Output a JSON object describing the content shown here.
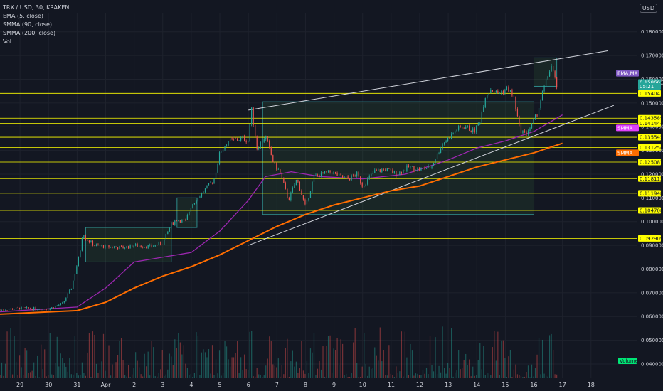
{
  "legend": {
    "symbol": "TRX / USD, 30, KRAKEN",
    "ema": "EMA (5, close)",
    "smma90": "SMMA (90, close)",
    "smma200": "SMMA (200, close)",
    "vol": "Vol"
  },
  "currency_button": "USD",
  "chart_data": {
    "type": "candlestick",
    "ylim": [
      0.034,
      0.188
    ],
    "y_ticks": [
      "0.180000",
      "0.170000",
      "0.160000",
      "0.150000",
      "0.140000",
      "0.130000",
      "0.120000",
      "0.110000",
      "0.100000",
      "0.090000",
      "0.080000",
      "0.070000",
      "0.060000",
      "0.050000",
      "0.040000"
    ],
    "y_tick_values": [
      0.18,
      0.17,
      0.16,
      0.15,
      0.14,
      0.13,
      0.12,
      0.11,
      0.1,
      0.09,
      0.08,
      0.07,
      0.06,
      0.05,
      0.04
    ],
    "x_tick_labels": [
      "29",
      "30",
      "31",
      "Apr",
      "2",
      "3",
      "4",
      "5",
      "6",
      "7",
      "8",
      "9",
      "10",
      "11",
      "12",
      "13",
      "14",
      "15",
      "16",
      "17",
      "18"
    ],
    "x_tick_days": [
      -3,
      -2,
      -1,
      0,
      1,
      2,
      3,
      4,
      5,
      6,
      7,
      8,
      9,
      10,
      11,
      12,
      13,
      14,
      15,
      16,
      17
    ],
    "x_range_days": [
      -3.7,
      18.6
    ],
    "price_series": {
      "name": "TRX / USD",
      "days": [
        -3.7,
        -3.0,
        -2.0,
        -1.5,
        -1.2,
        -0.9,
        -0.8,
        -0.7,
        -0.4,
        0.0,
        0.6,
        1.0,
        1.6,
        2.0,
        2.3,
        2.5,
        2.8,
        3.0,
        3.3,
        3.6,
        3.8,
        4.0,
        4.3,
        4.6,
        4.8,
        5.0,
        5.1,
        5.3,
        5.6,
        5.9,
        6.1,
        6.4,
        6.7,
        7.0,
        7.3,
        7.6,
        7.9,
        8.2,
        8.5,
        8.8,
        9.0,
        9.4,
        9.8,
        10.2,
        10.6,
        11.0,
        11.4,
        11.8,
        12.0,
        12.3,
        12.6,
        12.9,
        13.1,
        13.3,
        13.5,
        13.7,
        13.9,
        14.1,
        14.3,
        14.5,
        14.7,
        14.9,
        15.1,
        15.3,
        15.5,
        15.6,
        15.8
      ],
      "close": [
        0.0628,
        0.0635,
        0.0632,
        0.0655,
        0.072,
        0.087,
        0.096,
        0.093,
        0.09,
        0.0895,
        0.089,
        0.09,
        0.0895,
        0.091,
        0.099,
        0.101,
        0.1,
        0.107,
        0.111,
        0.115,
        0.118,
        0.129,
        0.134,
        0.1345,
        0.135,
        0.134,
        0.148,
        0.131,
        0.136,
        0.124,
        0.121,
        0.109,
        0.118,
        0.106,
        0.119,
        0.12,
        0.121,
        0.119,
        0.118,
        0.12,
        0.115,
        0.121,
        0.122,
        0.12,
        0.123,
        0.122,
        0.123,
        0.133,
        0.135,
        0.139,
        0.14,
        0.138,
        0.142,
        0.153,
        0.156,
        0.154,
        0.155,
        0.156,
        0.152,
        0.139,
        0.137,
        0.14,
        0.145,
        0.154,
        0.162,
        0.166,
        0.157
      ]
    },
    "ema_5": {
      "name": "EMA (5, close)",
      "last_value": 0.158661
    },
    "smma_90": {
      "name": "SMMA (90, close)",
      "days": [
        -3.7,
        -1.0,
        0.0,
        1.0,
        2.0,
        3.0,
        4.0,
        5.0,
        5.6,
        6.5,
        7.5,
        9.0,
        10.5,
        12.0,
        13.0,
        14.0,
        15.0,
        16.0
      ],
      "values": [
        0.062,
        0.064,
        0.072,
        0.083,
        0.085,
        0.087,
        0.096,
        0.109,
        0.119,
        0.121,
        0.119,
        0.118,
        0.12,
        0.126,
        0.131,
        0.134,
        0.138,
        0.145
      ]
    },
    "smma_200": {
      "name": "SMMA (200, close)",
      "days": [
        -3.7,
        -1.0,
        0.0,
        1.0,
        2.0,
        3.0,
        4.0,
        5.0,
        6.0,
        7.0,
        8.0,
        9.0,
        10.0,
        11.0,
        12.0,
        13.0,
        14.0,
        15.0,
        16.0
      ],
      "values": [
        0.061,
        0.0625,
        0.066,
        0.072,
        0.077,
        0.081,
        0.086,
        0.092,
        0.098,
        0.103,
        0.107,
        0.11,
        0.113,
        0.115,
        0.119,
        0.123,
        0.126,
        0.129,
        0.133
      ]
    },
    "horizontal_levels": [
      0.154047,
      0.143589,
      0.141444,
      0.135545,
      0.131254,
      0.125087,
      0.118115,
      0.111948,
      0.104708,
      0.092909
    ],
    "trendlines": [
      {
        "from": [
          5.0,
          0.147
        ],
        "to": [
          17.6,
          0.172
        ]
      },
      {
        "from": [
          5.0,
          0.09
        ],
        "to": [
          17.8,
          0.149
        ]
      }
    ],
    "rectangles": [
      {
        "days": [
          -0.7,
          2.3
        ],
        "price": [
          0.083,
          0.0975
        ]
      },
      {
        "days": [
          2.5,
          3.2
        ],
        "price": [
          0.0975,
          0.11
        ]
      },
      {
        "days": [
          5.5,
          15.0
        ],
        "price": [
          0.103,
          0.1505
        ]
      },
      {
        "days": [
          15.0,
          15.8
        ],
        "price": [
          0.157,
          0.169
        ]
      }
    ],
    "price_tags": [
      {
        "text": "0.158661",
        "value": 0.158661,
        "color": "#26a69a"
      },
      {
        "text": "05:21",
        "value": 0.157,
        "color": "#26a69a"
      },
      {
        "text": "0.154047",
        "value": 0.154047,
        "color": "#ffff00"
      },
      {
        "text": "0.143589",
        "value": 0.143589,
        "color": "#ffff00"
      },
      {
        "text": "0.141444",
        "value": 0.141444,
        "color": "#ffff00"
      },
      {
        "text": "0.135545",
        "value": 0.135545,
        "color": "#ffff00"
      },
      {
        "text": "0.131254",
        "value": 0.131254,
        "color": "#ffff00"
      },
      {
        "text": "0.125087",
        "value": 0.125087,
        "color": "#ffff00"
      },
      {
        "text": "0.118115",
        "value": 0.118115,
        "color": "#ffff00"
      },
      {
        "text": "0.111948",
        "value": 0.111948,
        "color": "#ffff00"
      },
      {
        "text": "0.104708",
        "value": 0.104708,
        "color": "#ffff00"
      },
      {
        "text": "0.092909",
        "value": 0.092909,
        "color": "#ffff00"
      }
    ],
    "indicator_tags": [
      {
        "text": "EMA;MA",
        "value": 0.1625,
        "color": "#7e57c2"
      },
      {
        "text": "SMMA",
        "value": 0.1395,
        "color": "#e040fb"
      },
      {
        "text": "SMMA",
        "value": 0.129,
        "color": "#ff6d00"
      }
    ],
    "volume_label": "Volume",
    "colors": {
      "background": "#131722",
      "up": "#26a69a",
      "down": "#ef5350",
      "levels": "#ffff00",
      "trendline": "#d1d4dc",
      "smma_90": "#9c27b0",
      "smma_200": "#ff6d00",
      "box_border": "#2e8b8b",
      "grid": "#1e222d"
    }
  }
}
